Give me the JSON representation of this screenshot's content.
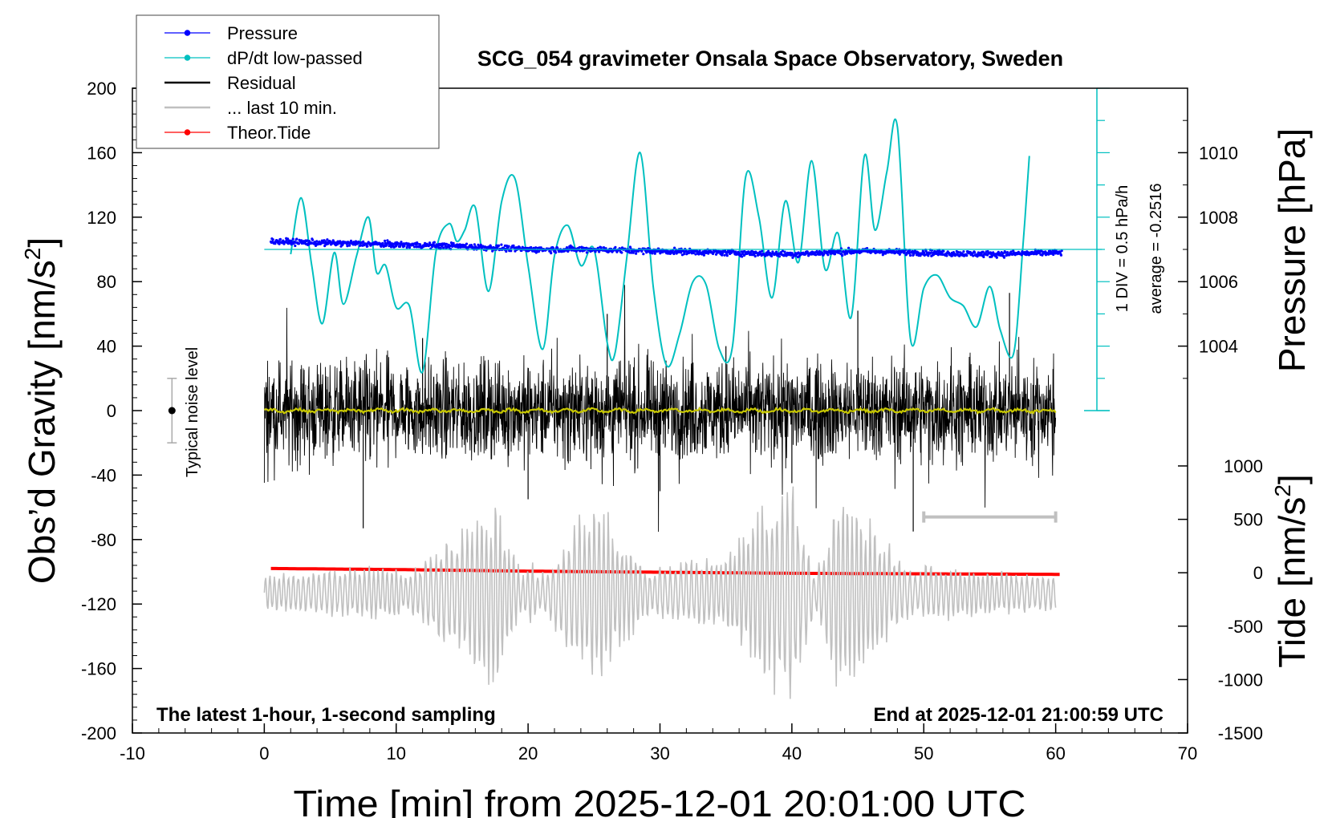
{
  "chart_data": {
    "type": "line",
    "title": "SCG_054 gravimeter Onsala Space Observatory, Sweden",
    "note_left": "The latest 1-hour, 1-second sampling",
    "note_right": "End at 2025-12-01 21:00:59 UTC",
    "xlabel": "Time [min] from 2025-12-01 20:01:00 UTC",
    "ylabel_left_main": "Obs’d Gravity [nm/s",
    "ylabel_left_sup": "2",
    "ylabel_left_close": "]",
    "ylabel_right_pressure": "Pressure [hPa]",
    "ylabel_right_tide_main": "Tide [nm/s",
    "ylabel_right_tide_sup": "2",
    "ylabel_right_tide_close": "]",
    "xlim": [
      -10,
      70
    ],
    "ylim": [
      -200,
      200
    ],
    "pressure_ylim": [
      1002,
      1012
    ],
    "tide_ylim": [
      -1500,
      1000
    ],
    "x_ticks": [
      "-10",
      "0",
      "10",
      "20",
      "30",
      "40",
      "50",
      "60",
      "70"
    ],
    "y_ticks": [
      "200",
      "160",
      "120",
      "80",
      "40",
      "0",
      "-40",
      "-80",
      "-120",
      "-160",
      "-200"
    ],
    "pressure_ticks": [
      "1010",
      "1008",
      "1006",
      "1004"
    ],
    "tide_ticks": [
      "1000",
      "500",
      "0",
      "-500",
      "-1000",
      "-1500"
    ],
    "dpdt_annotation_1": "1 DIV = 0.5 hPa/h",
    "dpdt_annotation_2": "average = -0.2516",
    "noise_label": "Typical noise level",
    "noise_bar": {
      "x": -7,
      "center": 0,
      "half_range": 20
    },
    "last10_bar": {
      "x_start": 50,
      "x_end": 60,
      "y": -66
    },
    "legend": [
      {
        "label": "Pressure",
        "color": "#0000ff",
        "marker": true
      },
      {
        "label": "dP/dt low-passed",
        "color": "#00c0c0",
        "marker": true
      },
      {
        "label": "Residual",
        "color": "#000000",
        "marker": false
      },
      {
        "label": "... last 10 min.",
        "color": "#c0c0c0",
        "marker": false
      },
      {
        "label": "Theor.Tide",
        "color": "#ff0000",
        "marker": true
      }
    ],
    "series": [
      {
        "name": "Pressure",
        "axis": "pressure_hPa",
        "color": "#0000ff",
        "x": [
          0.5,
          5,
          10,
          15,
          20,
          25,
          30,
          35,
          40,
          45,
          50,
          55,
          60.5
        ],
        "values": [
          1007.25,
          1007.2,
          1007.15,
          1007.1,
          1007.0,
          1007.0,
          1006.95,
          1006.9,
          1006.85,
          1006.95,
          1006.9,
          1006.85,
          1006.9
        ]
      },
      {
        "name": "dP/dt low-passed",
        "axis": "gravity_scale",
        "color": "#00c0c0",
        "x": [
          2.0,
          2.8,
          3.6,
          4.4,
          5.3,
          6.0,
          7.0,
          7.9,
          8.5,
          9.2,
          10.0,
          11.0,
          12.0,
          13.0,
          14.0,
          14.6,
          15.2,
          16.0,
          17.0,
          18.0,
          19.0,
          20.0,
          21.1,
          22.0,
          23.0,
          24.0,
          25.0,
          26.0,
          26.6,
          27.5,
          28.5,
          29.5,
          30.5,
          31.5,
          32.5,
          33.5,
          34.5,
          35.5,
          36.5,
          37.5,
          38.5,
          39.5,
          40.5,
          41.5,
          42.5,
          43.5,
          44.5,
          45.5,
          46.3,
          47.2,
          48.0,
          49.0,
          50.0,
          51.0,
          52.0,
          53.0,
          54.0,
          55.0,
          55.8,
          56.8,
          57.5,
          58.0
        ],
        "values": [
          97,
          132,
          90,
          54,
          98,
          66,
          96,
          120,
          86,
          90,
          64,
          65,
          24,
          98,
          116,
          105,
          112,
          126,
          74,
          130,
          144,
          90,
          38,
          96,
          115,
          90,
          100,
          42,
          36,
          96,
          160,
          76,
          28,
          48,
          80,
          78,
          38,
          40,
          145,
          120,
          70,
          130,
          92,
          155,
          88,
          110,
          58,
          158,
          112,
          148,
          176,
          44,
          76,
          84,
          70,
          65,
          52,
          77,
          50,
          35,
          100,
          158
        ]
      },
      {
        "name": "Residual",
        "axis": "gravity_nm_s2",
        "color": "#000000",
        "x": [
          0,
          6,
          7.5,
          12,
          20,
          26,
          30,
          35,
          40,
          45,
          49.2,
          56.5,
          60
        ],
        "values": [
          0,
          0,
          -73,
          45,
          -55,
          60,
          -50,
          40,
          -45,
          62,
          -75,
          73,
          0
        ]
      },
      {
        "name": "... last 10 min.",
        "axis": "gravity_nm_s2",
        "color": "#c0c0c0",
        "x": [
          0,
          10,
          17.5,
          20,
          25,
          30,
          35,
          39.8,
          43.5,
          50,
          60
        ],
        "values": [
          -113,
          -120,
          -60,
          -125,
          -60,
          -120,
          -125,
          -185,
          -50,
          -120,
          -113
        ]
      },
      {
        "name": "Theor.Tide",
        "axis": "tide_nm_s2",
        "color": "#ff0000",
        "x": [
          0.5,
          10,
          20,
          30,
          40,
          50,
          60.5
        ],
        "values": [
          40,
          30,
          15,
          5,
          -5,
          -10,
          -15
        ]
      },
      {
        "name": "",
        "axis": "gravity_nm_s2",
        "color": "#c8c800",
        "x": [
          0,
          15,
          30,
          45,
          60
        ],
        "values": [
          0,
          0,
          0,
          0,
          0
        ]
      }
    ]
  }
}
